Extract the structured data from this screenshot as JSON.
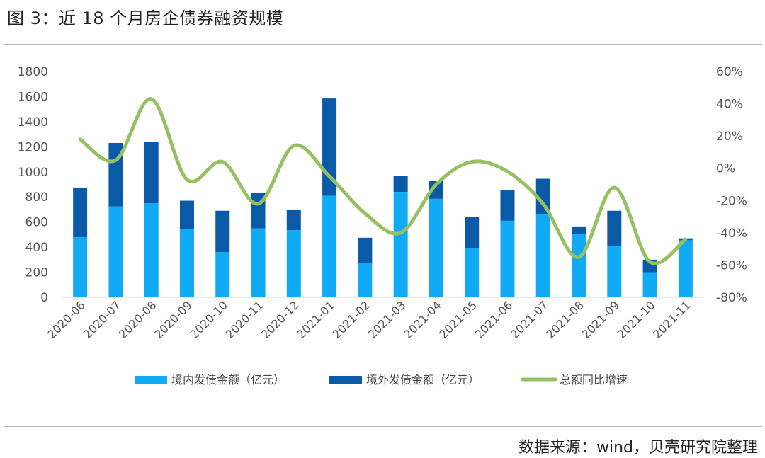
{
  "title": "图 3：近 18 个月房企债券融资规模",
  "source": "数据来源：wind，贝壳研究院整理",
  "chart_data": {
    "type": "bar",
    "stacked": true,
    "categories": [
      "2020-06",
      "2020-07",
      "2020-08",
      "2020-09",
      "2020-10",
      "2020-11",
      "2020-12",
      "2021-01",
      "2021-02",
      "2021-03",
      "2021-04",
      "2021-05",
      "2021-06",
      "2021-07",
      "2021-08",
      "2021-09",
      "2021-10",
      "2021-11"
    ],
    "series": [
      {
        "name": "境内发债金额（亿元）",
        "type": "bar",
        "axis": "left",
        "color": "#11aaf5",
        "values": [
          480,
          725,
          750,
          545,
          360,
          550,
          535,
          810,
          275,
          840,
          785,
          390,
          610,
          665,
          505,
          410,
          200,
          455
        ]
      },
      {
        "name": "境外发债金额（亿元）",
        "type": "bar",
        "axis": "left",
        "color": "#0a5aa8",
        "values": [
          395,
          505,
          490,
          225,
          330,
          285,
          165,
          775,
          200,
          125,
          145,
          250,
          245,
          280,
          60,
          280,
          100,
          15
        ]
      },
      {
        "name": "总额同比增速",
        "type": "line",
        "axis": "right",
        "color": "#96c062",
        "values": [
          18,
          5,
          43,
          -7,
          4,
          -22,
          14,
          -5,
          -28,
          -40,
          -10,
          4,
          -2,
          -22,
          -55,
          -12,
          -58,
          -44
        ]
      }
    ],
    "ylim_left": [
      0,
      1800
    ],
    "yticks_left": [
      0,
      200,
      400,
      600,
      800,
      1000,
      1200,
      1400,
      1600,
      1800
    ],
    "ylim_right": [
      -80,
      60
    ],
    "yticks_right": [
      "-80%",
      "-60%",
      "-40%",
      "-20%",
      "0%",
      "20%",
      "40%",
      "60%"
    ],
    "legend_position": "bottom"
  }
}
